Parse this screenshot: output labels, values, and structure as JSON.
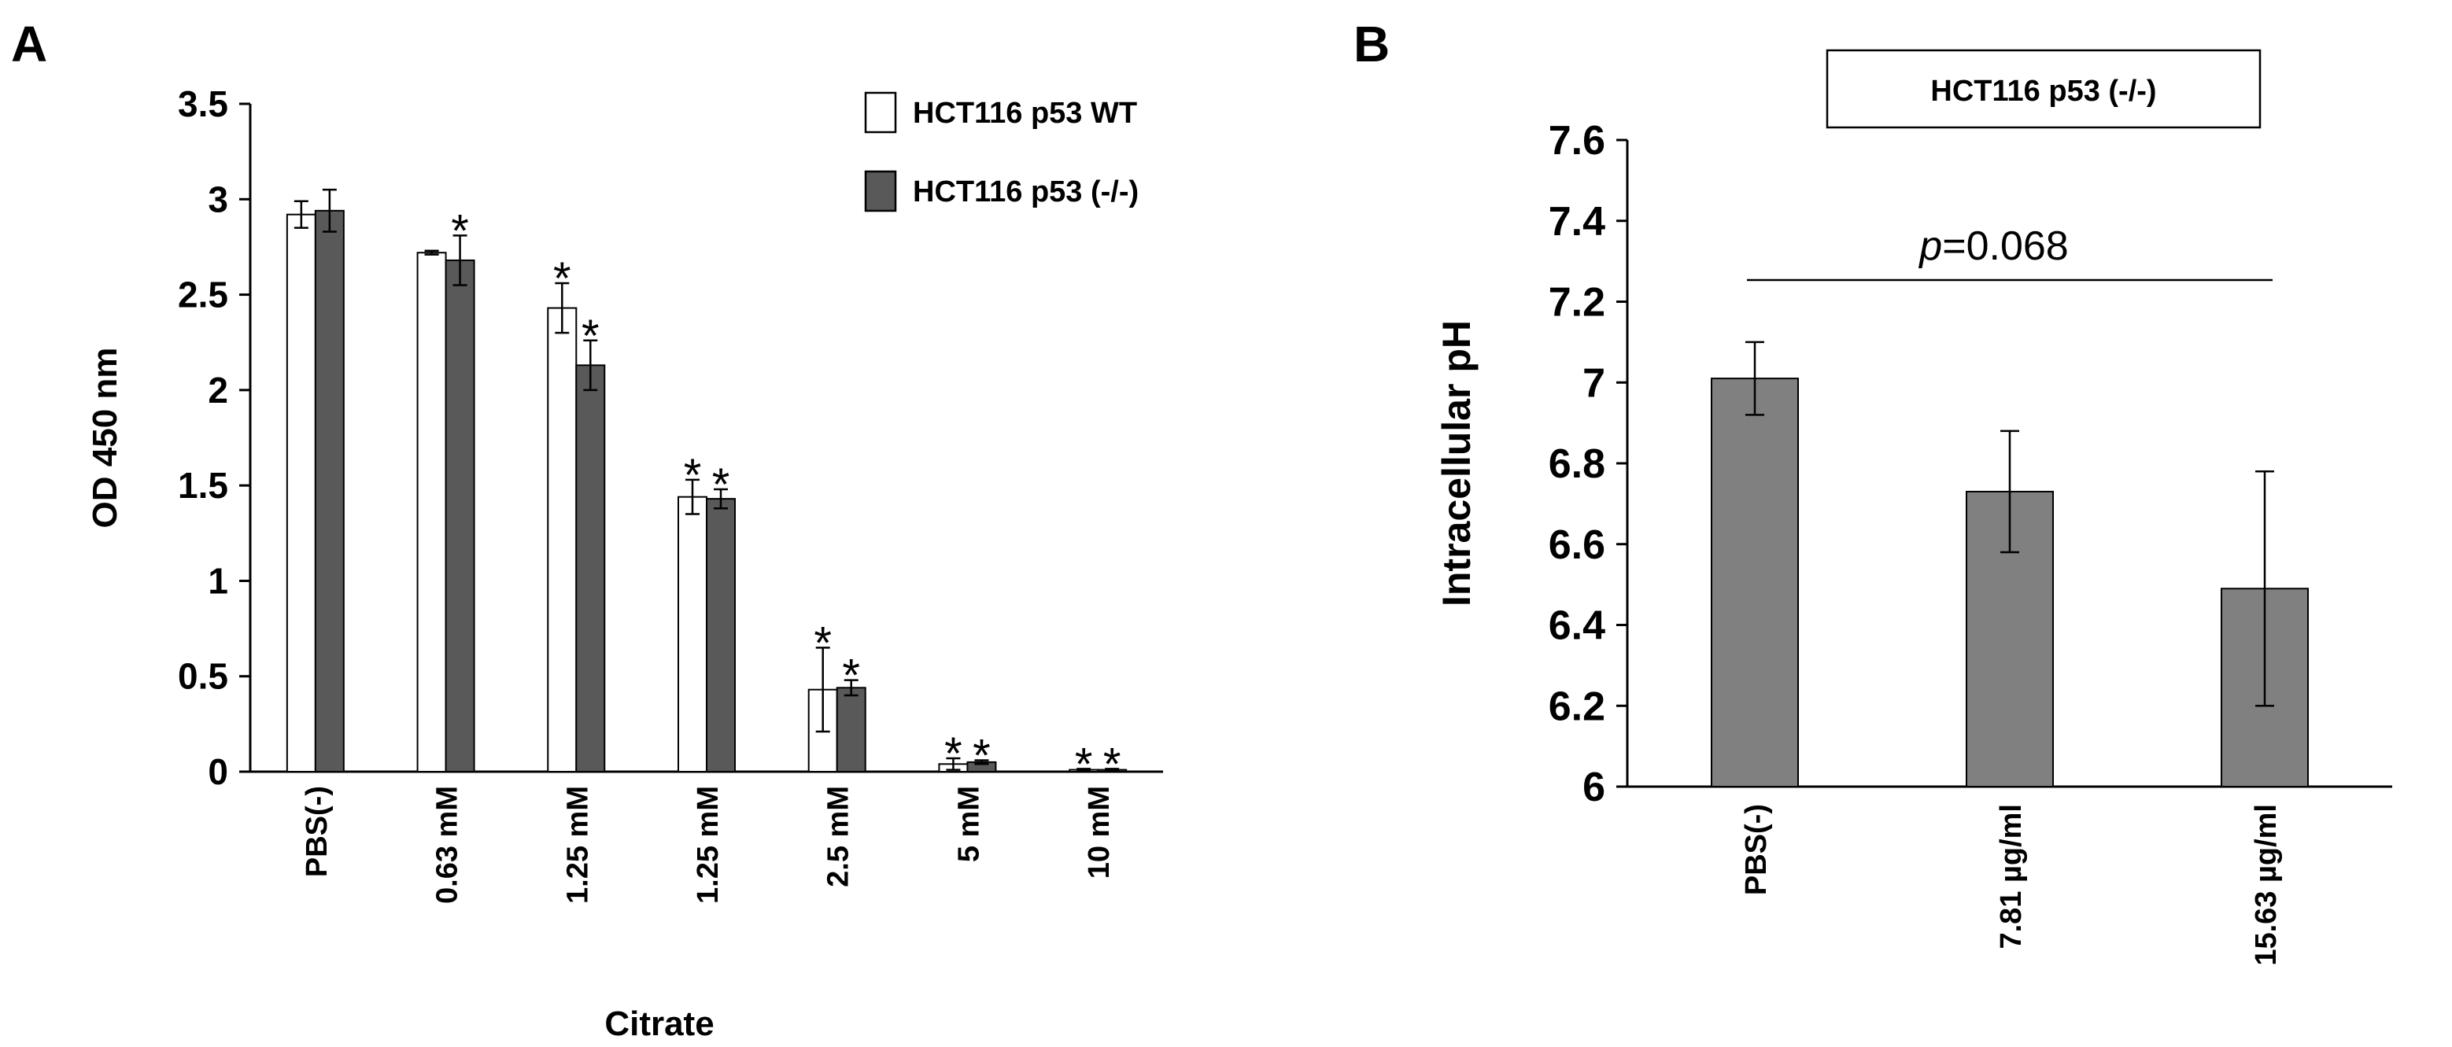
{
  "panels": {
    "a_letter": "A",
    "b_letter": "B"
  },
  "chart_data": [
    {
      "type": "bar",
      "panel": "A",
      "title": "",
      "xlabel": "Citrate",
      "ylabel": "OD 450 nm",
      "ylim": [
        0,
        3.5
      ],
      "yticks": [
        "0",
        "0.5",
        "1",
        "1.5",
        "2",
        "2.5",
        "3",
        "3.5"
      ],
      "categories": [
        "PBS(-)",
        "0.63 mM",
        "1.25 mM",
        "1.25 mM",
        "2.5 mM",
        "5 mM",
        "10 mM"
      ],
      "series": [
        {
          "name": "HCT116 p53 WT",
          "color": "#ffffff",
          "values": [
            2.92,
            2.72,
            2.43,
            1.44,
            0.43,
            0.04,
            0.01
          ],
          "errors": [
            0.07,
            0.01,
            0.13,
            0.09,
            0.22,
            0.03,
            0.005
          ],
          "stars": [
            "",
            "",
            "*",
            "*",
            "*",
            "*",
            "*"
          ]
        },
        {
          "name": "HCT116 p53 (-/-)",
          "color": "#595959",
          "values": [
            2.94,
            2.68,
            2.13,
            1.43,
            0.44,
            0.05,
            0.01
          ],
          "errors": [
            0.11,
            0.13,
            0.13,
            0.05,
            0.04,
            0.01,
            0.005
          ],
          "stars": [
            "",
            "*",
            "*",
            "*",
            "*",
            "*",
            "*"
          ]
        }
      ],
      "legend_position": "top-right",
      "grid": false
    },
    {
      "type": "bar",
      "panel": "B",
      "title": "HCT116 p53 (-/-)",
      "xlabel": "",
      "ylabel": "Intracellular pH",
      "ylim": [
        6,
        7.6
      ],
      "yticks": [
        "6",
        "6.2",
        "6.4",
        "6.6",
        "6.8",
        "7",
        "7.2",
        "7.4",
        "7.6"
      ],
      "categories": [
        "PBS(-)",
        "7.81 µg/ml",
        "15.63 µg/ml"
      ],
      "values": [
        7.01,
        6.73,
        6.49
      ],
      "errors": [
        0.09,
        0.15,
        0.29
      ],
      "color": "#808080",
      "annotation": {
        "p_label": "p",
        "p_value": "=0.068"
      },
      "grid": false
    }
  ]
}
